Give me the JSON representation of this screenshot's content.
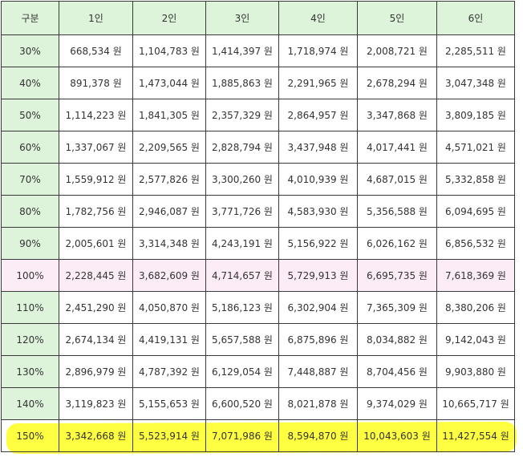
{
  "table": {
    "headers": [
      "구분",
      "1인",
      "2인",
      "3인",
      "4인",
      "5인",
      "6인"
    ],
    "rows": [
      [
        "30%",
        "668,534 원",
        "1,104,783 원",
        "1,414,397 원",
        "1,718,974 원",
        "2,008,721 원",
        "2,285,511 원"
      ],
      [
        "40%",
        "891,378 원",
        "1,473,044 원",
        "1,885,863 원",
        "2,291,965 원",
        "2,678,294 원",
        "3,047,348 원"
      ],
      [
        "50%",
        "1,114,223 원",
        "1,841,305 원",
        "2,357,329 원",
        "2,864,957 원",
        "3,347,868 원",
        "3,809,185 원"
      ],
      [
        "60%",
        "1,337,067 원",
        "2,209,565 원",
        "2,828,794 원",
        "3,437,948 원",
        "4,017,441 원",
        "4,571,021 원"
      ],
      [
        "70%",
        "1,559,912 원",
        "2,577,826 원",
        "3,300,260 원",
        "4,010,939 원",
        "4,687,015 원",
        "5,332,858 원"
      ],
      [
        "80%",
        "1,782,756 원",
        "2,946,087 원",
        "3,771,726 원",
        "4,583,930 원",
        "5,356,588 원",
        "6,094,695 원"
      ],
      [
        "90%",
        "2,005,601 원",
        "3,314,348 원",
        "4,243,191 원",
        "5,156,922 원",
        "6,026,162 원",
        "6,856,532 원"
      ],
      [
        "100%",
        "2,228,445 원",
        "3,682,609 원",
        "4,714,657 원",
        "5,729,913 원",
        "6,695,735 원",
        "7,618,369 원"
      ],
      [
        "110%",
        "2,451,290 원",
        "4,050,870 원",
        "5,186,123 원",
        "6,302,904 원",
        "7,365,309 원",
        "8,380,206 원"
      ],
      [
        "120%",
        "2,674,134 원",
        "4,419,131 원",
        "5,657,588 원",
        "6,875,896 원",
        "8,034,882 원",
        "9,142,043 원"
      ],
      [
        "130%",
        "2,896,979 원",
        "4,787,392 원",
        "6,129,054 원",
        "7,448,887 원",
        "8,704,456 원",
        "9,903,880 원"
      ],
      [
        "140%",
        "3,119,823 원",
        "5,155,653 원",
        "6,600,520 원",
        "8,021,878 원",
        "9,374,029 원",
        "10,665,717 원"
      ],
      [
        "150%",
        "3,342,668 원",
        "5,523,914 원",
        "7,071,986 원",
        "8,594,870 원",
        "10,043,603 원",
        "11,427,554 원"
      ]
    ]
  },
  "colors": {
    "header_bg": "#ddf3da",
    "first_col_bg": "#ddf3da",
    "base_row_bg": "#fcecf6",
    "highlight": "#ffff33",
    "border": "#3a3a3a"
  }
}
